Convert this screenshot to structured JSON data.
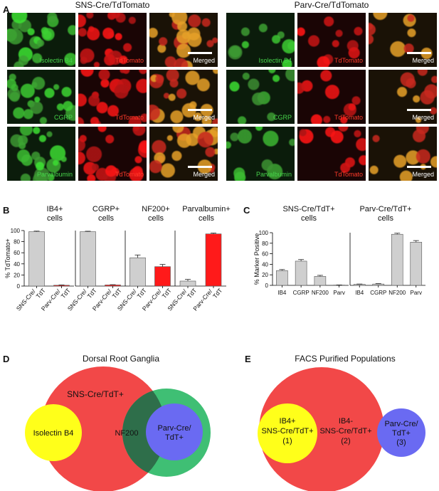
{
  "panels": {
    "a": "A",
    "b": "B",
    "c": "C",
    "d": "D",
    "e": "E"
  },
  "panel_a": {
    "groups": [
      {
        "title": "SNS-Cre/TdTomato"
      },
      {
        "title": "Parv-Cre/TdTomato"
      }
    ],
    "rows": [
      {
        "green": "Isolectin B4",
        "red": "TdTomato",
        "merged": "Merged"
      },
      {
        "green": "CGRP",
        "red": "TdTomato",
        "merged": "Merged"
      },
      {
        "green": "Parvalbumin",
        "red": "TdTomato",
        "merged": "Merged"
      }
    ],
    "colors": {
      "green": "#46d24a",
      "red": "#ff3a2a",
      "merged_text": "#ffffff"
    }
  },
  "chart_data": [
    {
      "type": "bar",
      "panel": "B",
      "ylabel": "% TdTomato+",
      "ylim": [
        0,
        100
      ],
      "yticks": [
        0,
        20,
        40,
        60,
        80,
        100
      ],
      "subplots": [
        {
          "title": [
            "IB4+",
            "cells"
          ],
          "categories": [
            [
              "SNS-Cre/",
              "TdT"
            ],
            [
              "Parv-Cre/",
              "TdT"
            ]
          ],
          "values": [
            98,
            1.5
          ],
          "errors": [
            1,
            0.5
          ],
          "colors": [
            "#cfcfcf",
            "#ff1a1a"
          ]
        },
        {
          "title": [
            "CGRP+",
            "cells"
          ],
          "categories": [
            [
              "SNS-Cre/",
              "TdT"
            ],
            [
              "Parv-Cre/",
              "TdT"
            ]
          ],
          "values": [
            98,
            2
          ],
          "errors": [
            0.8,
            0.5
          ],
          "colors": [
            "#cfcfcf",
            "#ff1a1a"
          ]
        },
        {
          "title": [
            "NF200+",
            "cells"
          ],
          "categories": [
            [
              "SNS-Cre/",
              "TdT"
            ],
            [
              "Parv-Cre/",
              "TdT"
            ]
          ],
          "values": [
            51,
            35
          ],
          "errors": [
            5,
            4
          ],
          "colors": [
            "#cfcfcf",
            "#ff1a1a"
          ]
        },
        {
          "title": [
            "Parvalbumin+",
            "cells"
          ],
          "categories": [
            [
              "SNS-Cre/",
              "TdT"
            ],
            [
              "Parv-Cre/",
              "TdT"
            ]
          ],
          "values": [
            9,
            94
          ],
          "errors": [
            3,
            1.5
          ],
          "colors": [
            "#cfcfcf",
            "#ff1a1a"
          ]
        }
      ]
    },
    {
      "type": "bar",
      "panel": "C",
      "ylabel": "% Marker Positive",
      "ylim": [
        0,
        100
      ],
      "yticks": [
        0,
        20,
        40,
        60,
        80,
        100
      ],
      "subplots": [
        {
          "title": [
            "SNS-Cre/TdT+",
            "cells"
          ],
          "categories": [
            "IB4",
            "CGRP",
            "NF200",
            "Parv"
          ],
          "values": [
            28,
            46,
            17,
            0.5
          ],
          "errors": [
            2,
            3,
            2,
            0.3
          ],
          "colors": [
            "#cfcfcf",
            "#cfcfcf",
            "#cfcfcf",
            "#cfcfcf"
          ]
        },
        {
          "title": [
            "Parv-Cre/TdT+",
            "cells"
          ],
          "categories": [
            "IB4",
            "CGRP",
            "NF200",
            "Parv"
          ],
          "values": [
            2,
            2.5,
            97,
            82
          ],
          "errors": [
            0.5,
            0.8,
            2,
            3
          ],
          "colors": [
            "#cfcfcf",
            "#cfcfcf",
            "#cfcfcf",
            "#cfcfcf"
          ]
        }
      ]
    }
  ],
  "panel_d": {
    "title": "Dorsal Root Ganglia",
    "sns": "SNS-Cre/TdT+",
    "ib4": "Isolectin B4",
    "nf200": "NF200",
    "parv": [
      "Parv-Cre/",
      "TdT+"
    ],
    "colors": {
      "sns": "#f24848",
      "nf200": "#3fbf74",
      "ib4": "#ffff1a",
      "parv": "#6a6af2",
      "overlap": "#2e6e4a"
    }
  },
  "panel_e": {
    "title": "FACS Purified Populations",
    "pop1": [
      "IB4+",
      "SNS-Cre/TdT+",
      "(1)"
    ],
    "pop2": [
      "IB4-",
      "SNS-Cre/TdT+",
      "(2)"
    ],
    "pop3": [
      "Parv-Cre/",
      "TdT+",
      "(3)"
    ]
  }
}
